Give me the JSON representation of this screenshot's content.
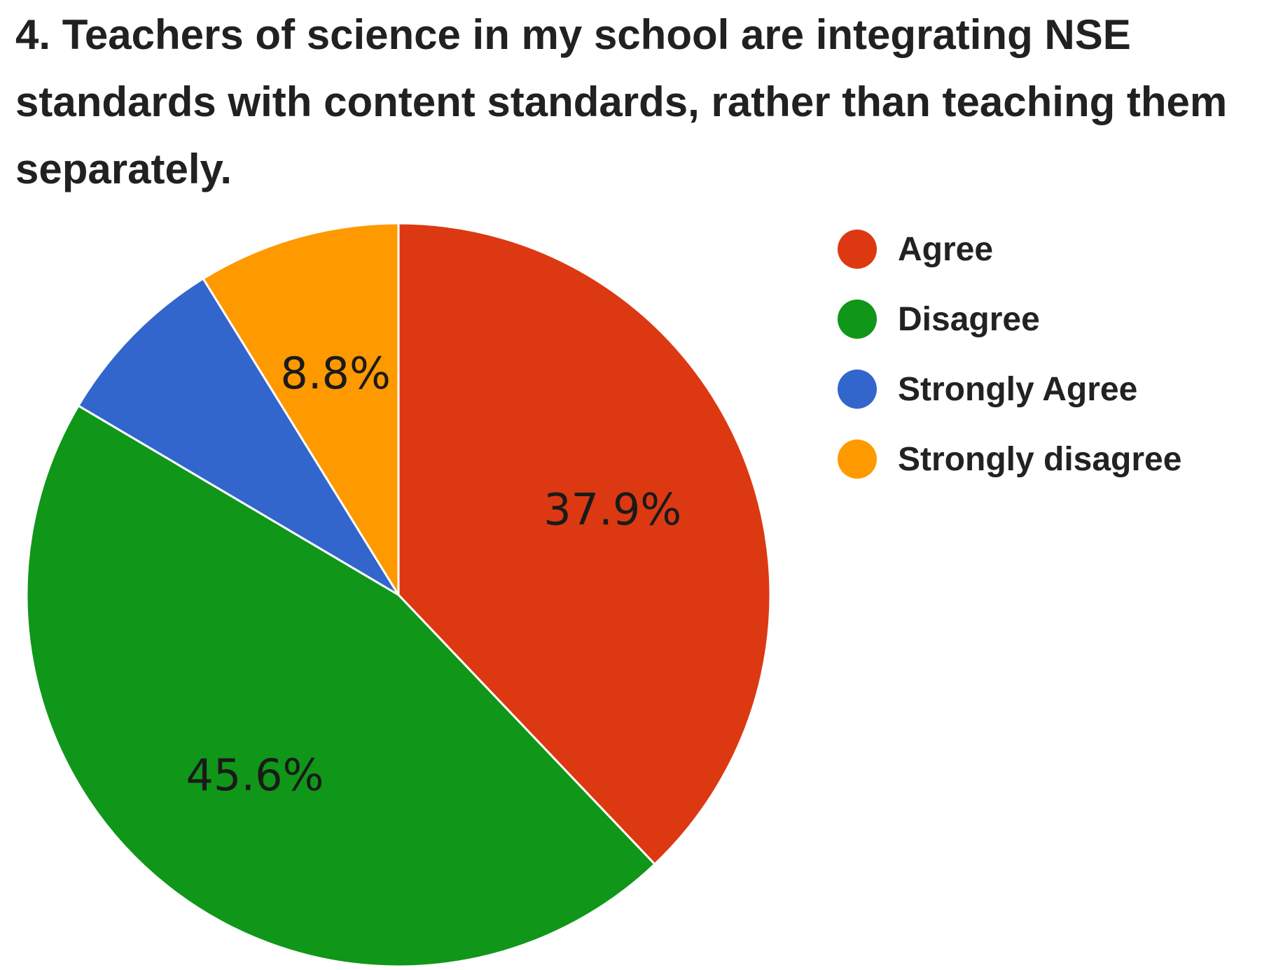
{
  "chart_data": {
    "type": "pie",
    "title": "4. Teachers of science in my school are integrating NSE standards with content standards, rather than teaching them separately.",
    "slices": [
      {
        "label": "Agree",
        "value": 37.9,
        "value_label": "37.9%",
        "color": "#DC3912"
      },
      {
        "label": "Disagree",
        "value": 45.6,
        "value_label": "45.6%",
        "color": "#109618"
      },
      {
        "label": "Strongly Agree",
        "value": 7.7,
        "value_label": "",
        "color": "#3366CC"
      },
      {
        "label": "Strongly disagree",
        "value": 8.8,
        "value_label": "8.8%",
        "color": "#FF9900"
      }
    ],
    "legend_position": "right",
    "start_angle": "12 o'clock",
    "direction": "clockwise"
  }
}
